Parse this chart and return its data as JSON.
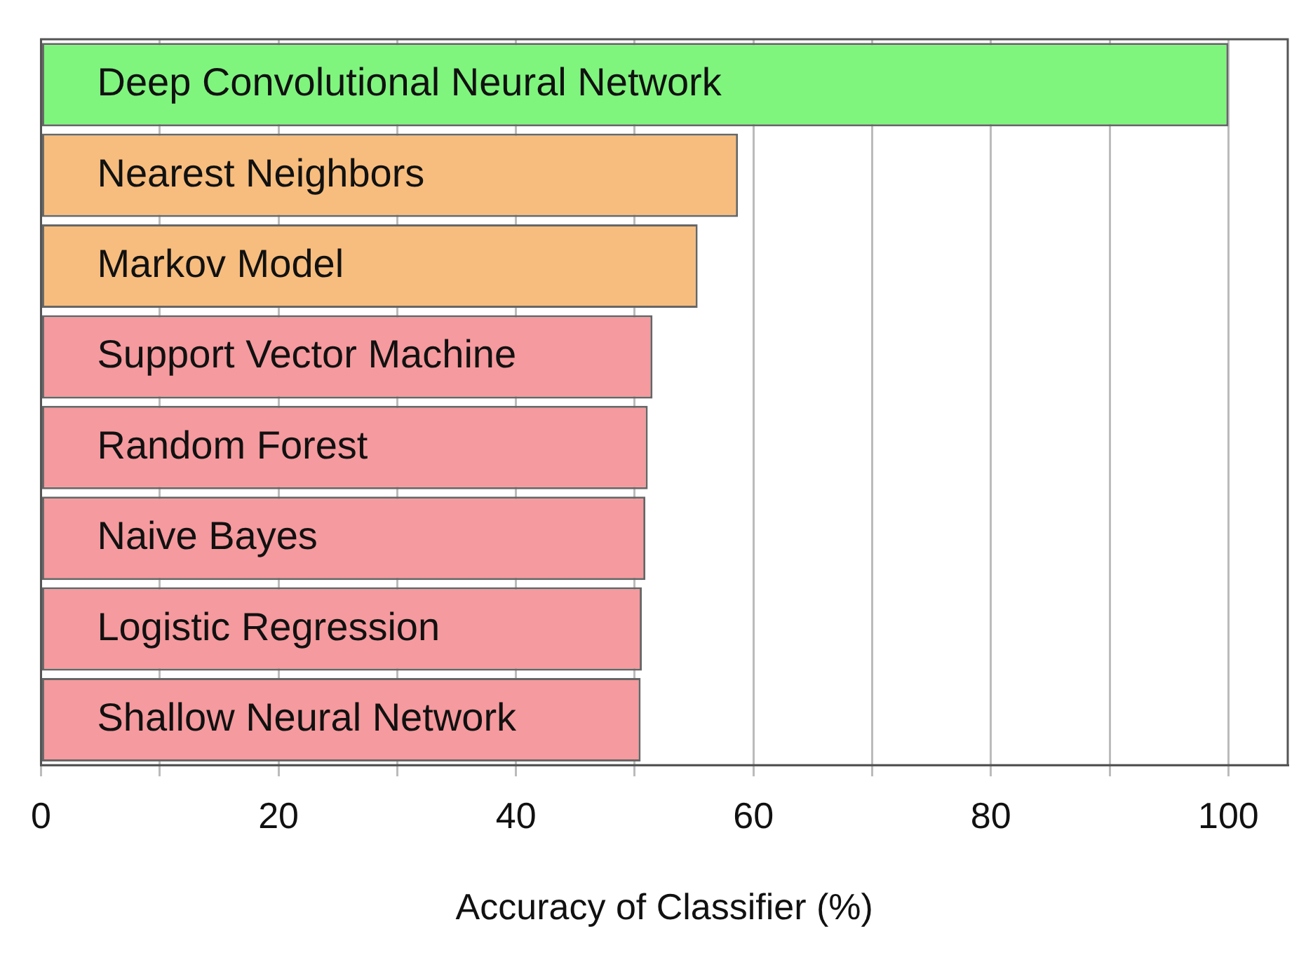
{
  "chart_data": {
    "type": "bar",
    "orientation": "horizontal",
    "xlabel": "Accuracy of Classifier (%)",
    "categories": [
      "Deep Convolutional Neural Network",
      "Nearest Neighbors",
      "Markov Model",
      "Support Vector Machine",
      "Random Forest",
      "Naive Bayes",
      "Logistic Regression",
      "Shallow Neural Network"
    ],
    "values": [
      100,
      58.7,
      55.3,
      51.5,
      51.1,
      50.9,
      50.6,
      50.5
    ],
    "colors": [
      "#7ff57e",
      "#f7bd7e",
      "#f7bd7e",
      "#f59a9e",
      "#f59a9e",
      "#f59a9e",
      "#f59a9e",
      "#f59a9e"
    ],
    "xlim": [
      0,
      105
    ],
    "xticks": [
      0,
      {
        "value": 10,
        "label": null
      },
      20,
      {
        "value": 30,
        "label": null
      },
      40,
      {
        "value": 50,
        "label": null
      },
      60,
      {
        "value": 70,
        "label": null
      },
      80,
      {
        "value": 90,
        "label": null
      },
      100
    ],
    "grid": "x",
    "tick_labels": "x"
  }
}
